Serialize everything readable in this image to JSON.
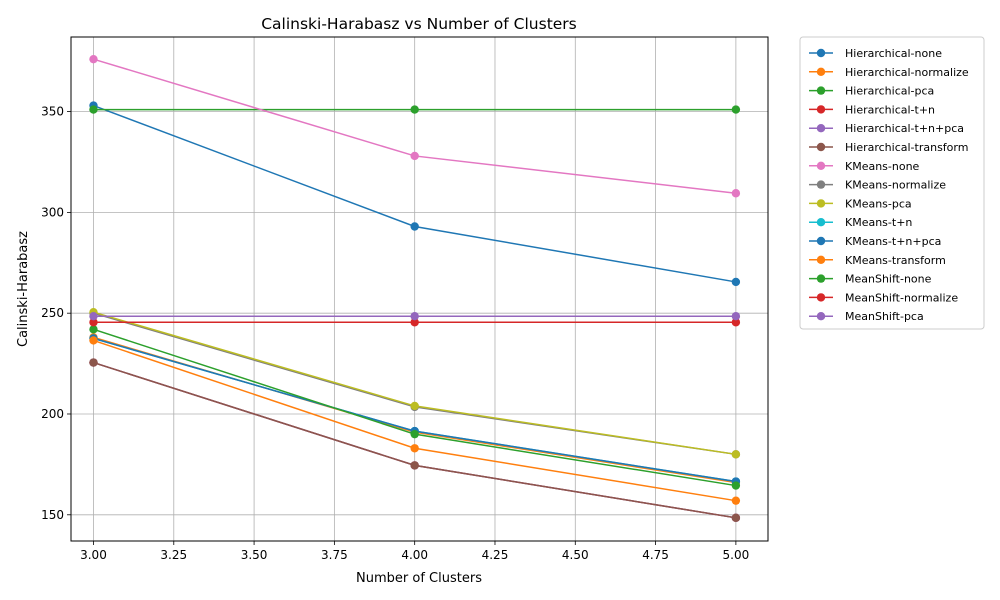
{
  "chart_data": {
    "type": "line",
    "title": "Calinski-Harabasz vs Number of Clusters",
    "xlabel": "Number of Clusters",
    "ylabel": "Calinski-Harabasz",
    "x": [
      3,
      4,
      5
    ],
    "xlim": [
      2.93,
      5.1
    ],
    "ylim": [
      137,
      387
    ],
    "xticks": [
      "3.00",
      "3.25",
      "3.50",
      "3.75",
      "4.00",
      "4.25",
      "4.50",
      "4.75",
      "5.00"
    ],
    "yticks": [
      "150",
      "200",
      "250",
      "300",
      "350"
    ],
    "grid": true,
    "legend_position": "outside-right",
    "series": [
      {
        "name": "Hierarchical-none",
        "color": "#1f77b4",
        "values": [
          353,
          293,
          265.5
        ]
      },
      {
        "name": "Hierarchical-normalize",
        "color": "#ff7f0e",
        "values": [
          238,
          191,
          166
        ]
      },
      {
        "name": "Hierarchical-pca",
        "color": "#2ca02c",
        "values": [
          351,
          351,
          351
        ]
      },
      {
        "name": "Hierarchical-t+n",
        "color": "#d62728",
        "values": [
          225.5,
          174.5,
          148.5
        ]
      },
      {
        "name": "Hierarchical-t+n+pca",
        "color": "#9467bd",
        "values": [
          225.5,
          174.5,
          148.5
        ]
      },
      {
        "name": "Hierarchical-transform",
        "color": "#8c564b",
        "values": [
          225.5,
          174.5,
          148.5
        ]
      },
      {
        "name": "KMeans-none",
        "color": "#e377c2",
        "values": [
          376,
          328,
          309.5
        ]
      },
      {
        "name": "KMeans-normalize",
        "color": "#7f7f7f",
        "values": [
          250,
          203.5,
          180
        ]
      },
      {
        "name": "KMeans-pca",
        "color": "#bcbd22",
        "values": [
          250.5,
          204,
          180
        ]
      },
      {
        "name": "KMeans-t+n",
        "color": "#17becf",
        "values": [
          237.5,
          191.5,
          166.5
        ]
      },
      {
        "name": "KMeans-t+n+pca",
        "color": "#1f77b4",
        "values": [
          237.5,
          191.5,
          166.5
        ]
      },
      {
        "name": "KMeans-transform",
        "color": "#ff7f0e",
        "values": [
          236.5,
          183,
          157
        ]
      },
      {
        "name": "MeanShift-none",
        "color": "#2ca02c",
        "values": [
          242,
          190,
          164.5
        ]
      },
      {
        "name": "MeanShift-normalize",
        "color": "#d62728",
        "values": [
          245.5,
          245.5,
          245.5
        ]
      },
      {
        "name": "MeanShift-pca",
        "color": "#9467bd",
        "values": [
          248.5,
          248.5,
          248.5
        ]
      }
    ]
  }
}
